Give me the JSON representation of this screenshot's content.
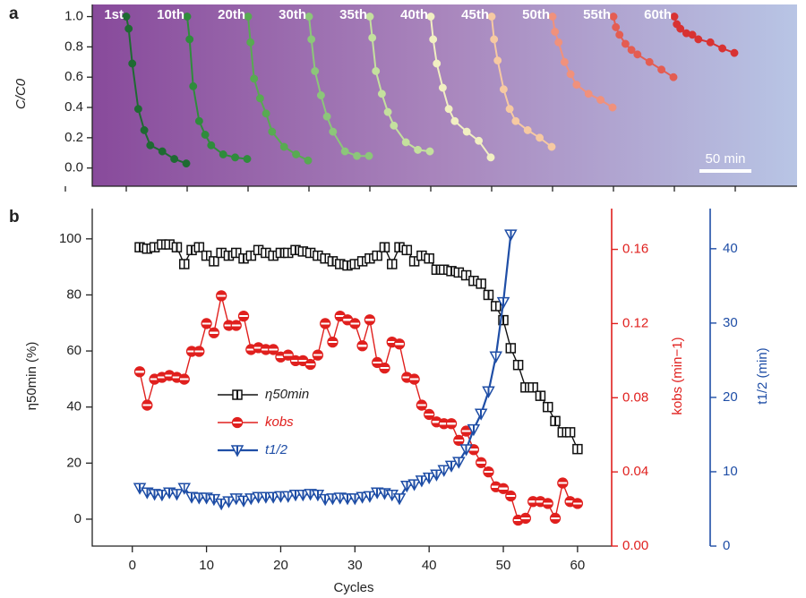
{
  "chart_data": [
    {
      "type": "line",
      "panel": "a",
      "ylabel": "C/C0",
      "x": [
        0,
        2,
        5,
        10,
        15,
        20,
        30,
        40,
        50
      ],
      "ylim": [
        -0.12,
        1.08
      ],
      "yticks": [
        {
          "value": 0,
          "label": "0.0"
        },
        {
          "value": 0.2,
          "label": "0.2"
        },
        {
          "value": 0.4,
          "label": "0.4"
        },
        {
          "value": 0.6,
          "label": "0.6"
        },
        {
          "value": 0.8,
          "label": "0.8"
        },
        {
          "value": 1.0,
          "label": "1.0"
        }
      ],
      "scale_bar": "50 min",
      "series": [
        {
          "name": "1st",
          "color": "#1e6a32",
          "values": [
            1.0,
            0.92,
            0.69,
            0.39,
            0.25,
            0.15,
            0.11,
            0.06,
            0.03
          ]
        },
        {
          "name": "10th",
          "color": "#2f8c3c",
          "values": [
            1.0,
            0.85,
            0.54,
            0.31,
            0.22,
            0.15,
            0.09,
            0.07,
            0.06
          ]
        },
        {
          "name": "20th",
          "color": "#58aa52",
          "values": [
            1.0,
            0.83,
            0.59,
            0.46,
            0.36,
            0.24,
            0.14,
            0.09,
            0.05
          ]
        },
        {
          "name": "30th",
          "color": "#8cc67a",
          "values": [
            1.0,
            0.85,
            0.64,
            0.48,
            0.34,
            0.24,
            0.11,
            0.08,
            0.08
          ]
        },
        {
          "name": "35th",
          "color": "#c4e09e",
          "values": [
            1.0,
            0.86,
            0.64,
            0.49,
            0.37,
            0.28,
            0.17,
            0.12,
            0.11
          ]
        },
        {
          "name": "40th",
          "color": "#f1efc2",
          "values": [
            1.0,
            0.85,
            0.69,
            0.53,
            0.39,
            0.31,
            0.24,
            0.18,
            0.07
          ]
        },
        {
          "name": "45th",
          "color": "#f6c9a2",
          "values": [
            1.0,
            0.85,
            0.71,
            0.52,
            0.39,
            0.31,
            0.25,
            0.2,
            0.14
          ]
        },
        {
          "name": "50th",
          "color": "#f0917c",
          "values": [
            1.0,
            0.9,
            0.83,
            0.7,
            0.62,
            0.55,
            0.49,
            0.45,
            0.4
          ]
        },
        {
          "name": "55th",
          "color": "#e45d52",
          "values": [
            1.0,
            0.93,
            0.88,
            0.82,
            0.78,
            0.75,
            0.7,
            0.65,
            0.6
          ]
        },
        {
          "name": "60th",
          "color": "#d83232",
          "values": [
            1.0,
            0.95,
            0.92,
            0.89,
            0.88,
            0.85,
            0.83,
            0.79,
            0.76
          ]
        }
      ]
    },
    {
      "type": "line",
      "panel": "b",
      "xlabel": "Cycles",
      "ylabel": "η50min (%)",
      "y2label": "kobs (min−1)",
      "y3label": "t1/2 (min)",
      "x": [
        1,
        2,
        3,
        4,
        5,
        6,
        7,
        8,
        9,
        10,
        11,
        12,
        13,
        14,
        15,
        16,
        17,
        18,
        19,
        20,
        21,
        22,
        23,
        24,
        25,
        26,
        27,
        28,
        29,
        30,
        31,
        32,
        33,
        34,
        35,
        36,
        37,
        38,
        39,
        40,
        41,
        42,
        43,
        44,
        45,
        46,
        47,
        48,
        49,
        50,
        51,
        52,
        53,
        54,
        55,
        56,
        57,
        58,
        59,
        60
      ],
      "xlim": [
        -5.4,
        64.6
      ],
      "xticks": [
        0,
        10,
        20,
        30,
        40,
        50,
        60
      ],
      "ylim": [
        -9.6,
        110.8
      ],
      "yticks": [
        0,
        20,
        40,
        60,
        80,
        100
      ],
      "y2lim": [
        0,
        0.182
      ],
      "y2ticks": [
        {
          "value": 0,
          "label": "0.00"
        },
        {
          "value": 0.04,
          "label": "0.04"
        },
        {
          "value": 0.08,
          "label": "0.08"
        },
        {
          "value": 0.12,
          "label": "0.12"
        },
        {
          "value": 0.16,
          "label": "0.16"
        }
      ],
      "y3lim": [
        0,
        45.4
      ],
      "y3ticks": [
        0,
        10,
        20,
        30,
        40
      ],
      "series": [
        {
          "name": "η50min",
          "color": "#111111",
          "marker": "square",
          "values": [
            97,
            96.5,
            97,
            98,
            98,
            97,
            91,
            96,
            97,
            94,
            92,
            95,
            94,
            95,
            93,
            94,
            96,
            95,
            94,
            95,
            95,
            96,
            95.5,
            95,
            94,
            93,
            92,
            91,
            90.5,
            91,
            92,
            93,
            94,
            97,
            91,
            97,
            96,
            92,
            94,
            93,
            89,
            89,
            88.5,
            88,
            87,
            85,
            84,
            80,
            76,
            71,
            61,
            55,
            47,
            47,
            44,
            40,
            35,
            31,
            31,
            25
          ]
        },
        {
          "name": "kobs",
          "color": "#e0201e",
          "marker": "circle",
          "axis": "y2",
          "values": [
            0.094,
            0.076,
            0.09,
            0.091,
            0.092,
            0.091,
            0.09,
            0.105,
            0.105,
            0.12,
            0.115,
            0.135,
            0.119,
            0.119,
            0.124,
            0.106,
            0.107,
            0.106,
            0.106,
            0.102,
            0.103,
            0.1,
            0.1,
            0.098,
            0.103,
            0.12,
            0.11,
            0.124,
            0.122,
            0.12,
            0.108,
            0.122,
            0.099,
            0.096,
            0.11,
            0.109,
            0.091,
            0.09,
            0.076,
            0.071,
            0.067,
            0.066,
            0.066,
            0.057,
            0.062,
            0.052,
            0.045,
            0.04,
            0.032,
            0.031,
            0.027,
            0.014,
            0.015,
            0.024,
            0.024,
            0.023,
            0.015,
            0.034,
            0.024,
            0.023
          ]
        },
        {
          "name": "t1/2",
          "color": "#1f4ea6",
          "marker": "triangle",
          "axis": "y3",
          "values": [
            7.8,
            7.2,
            7.0,
            6.9,
            7.2,
            7.0,
            7.8,
            6.6,
            6.5,
            6.5,
            6.3,
            5.7,
            6.0,
            6.4,
            6.1,
            6.4,
            6.6,
            6.6,
            6.6,
            6.7,
            6.7,
            6.9,
            6.9,
            7.0,
            6.9,
            6.3,
            6.4,
            6.5,
            6.4,
            6.4,
            6.6,
            6.7,
            7.2,
            7.1,
            6.9,
            6.4,
            8.1,
            8.3,
            8.8,
            9.2,
            9.6,
            10.2,
            10.8,
            11.3,
            13.0,
            15.7,
            17.8,
            20.8,
            25.5,
            32.8,
            41.9,
            null,
            null,
            null,
            null,
            null,
            null,
            null,
            null,
            null
          ]
        }
      ]
    }
  ]
}
